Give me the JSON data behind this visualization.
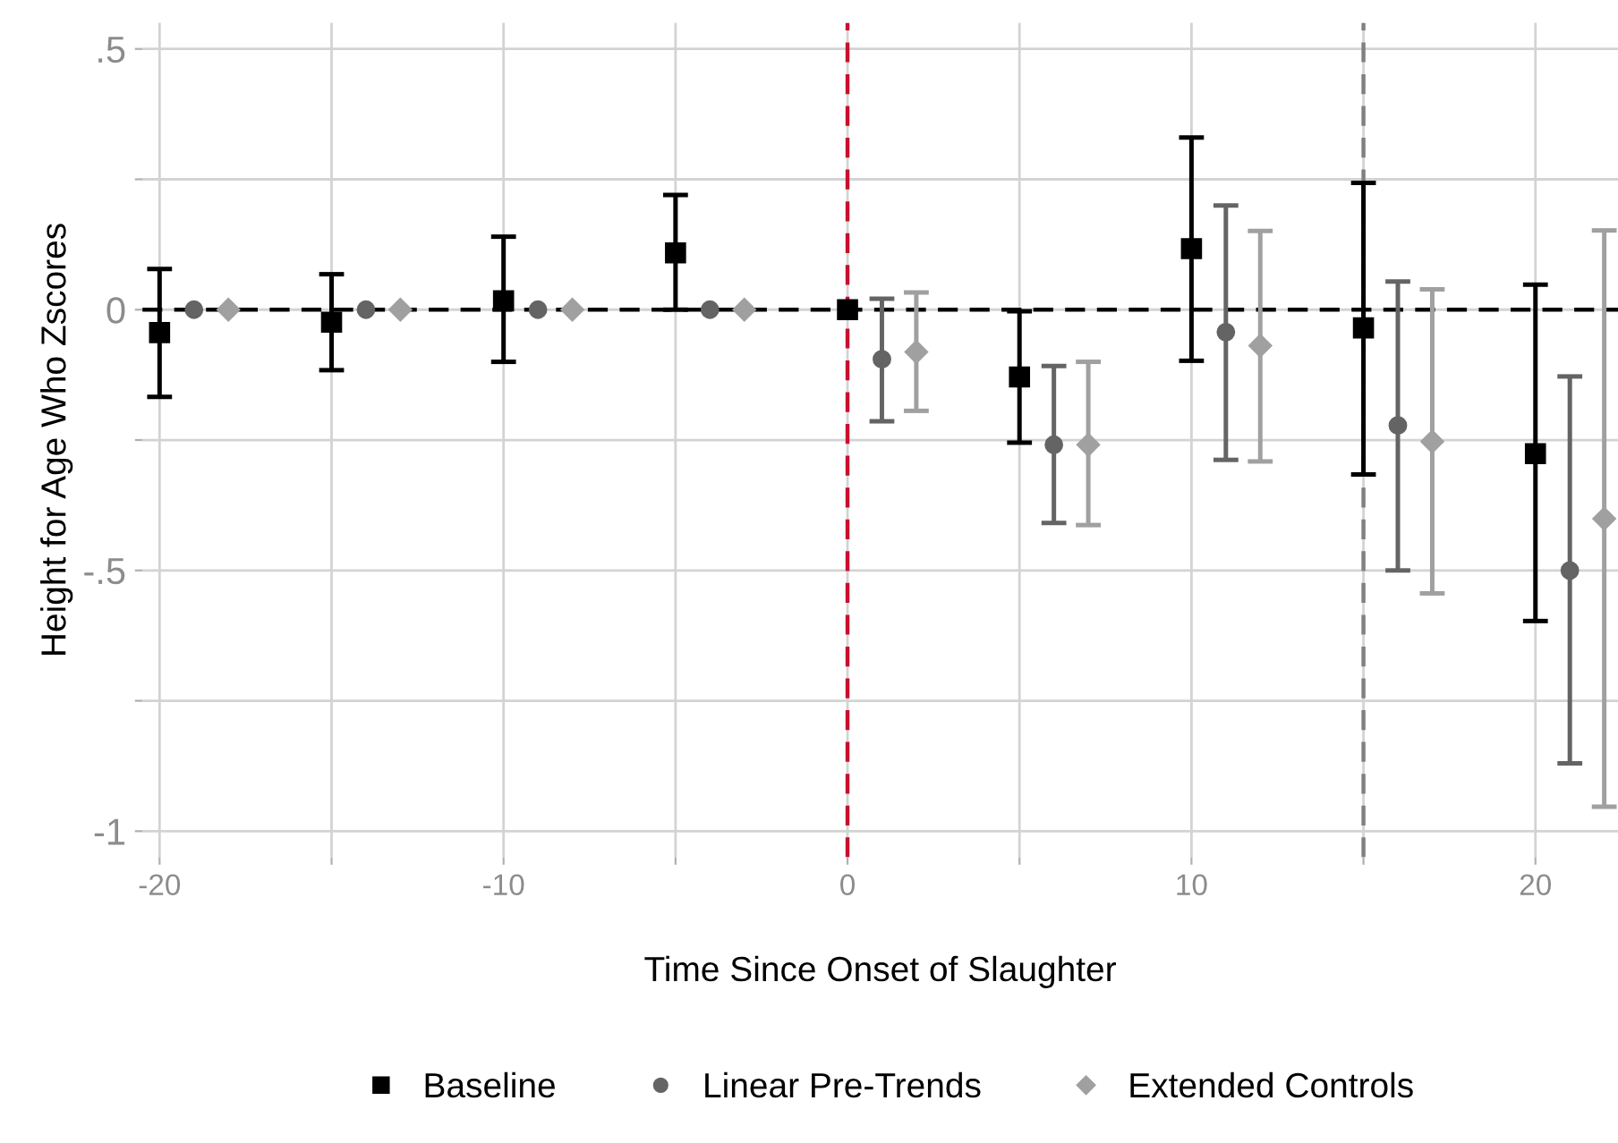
{
  "chart_data": {
    "type": "scatter",
    "xlabel": "Time Since Onset of Slaughter",
    "ylabel": "Height for Age Who Zscores",
    "xlim": [
      -20.5,
      22.4
    ],
    "ylim": [
      -1.05,
      0.55
    ],
    "xticks": [
      -20,
      {
        "value": -15,
        "label": null
      },
      -10,
      {
        "value": -5,
        "label": null
      },
      0,
      {
        "value": 5,
        "label": null
      },
      10,
      {
        "value": 15,
        "label": null
      },
      20
    ],
    "yticks": [
      {
        "value": -1,
        "label": "-1"
      },
      {
        "value": -0.75,
        "label": null
      },
      {
        "value": -0.5,
        "label": "-.5"
      },
      {
        "value": -0.25,
        "label": null
      },
      0,
      {
        "value": 0.25,
        "label": null
      },
      {
        "value": 0.5,
        "label": ".5"
      }
    ],
    "grid": true,
    "legend": "bottom",
    "ref_lines": [
      {
        "axis": "y",
        "value": 0,
        "color": "#000000",
        "line_style": "dashed"
      },
      {
        "axis": "x",
        "value": 0,
        "color": "#c8102e",
        "line_style": "dashed"
      },
      {
        "axis": "x",
        "value": 15,
        "color": "#808080",
        "line_style": "dashed"
      }
    ],
    "series": [
      {
        "name": "Baseline",
        "color": "#000000",
        "marker": "square",
        "x": [
          -20,
          -15,
          -10,
          -5,
          0,
          5,
          10,
          15,
          20
        ],
        "values": [
          -0.044,
          -0.024,
          0.017,
          0.109,
          0,
          -0.129,
          0.117,
          -0.035,
          -0.276
        ],
        "errors": [
          [
            -0.167,
            0.078
          ],
          [
            -0.116,
            0.068
          ],
          [
            -0.1,
            0.14
          ],
          [
            0,
            0.22
          ],
          null,
          [
            -0.255,
            -0.003
          ],
          [
            -0.098,
            0.33
          ],
          [
            -0.316,
            0.243
          ],
          [
            -0.597,
            0.048
          ]
        ]
      },
      {
        "name": "Linear Pre-Trends",
        "color": "#646464",
        "marker": "circle",
        "x": [
          -19,
          -14,
          -9,
          -4,
          1,
          6,
          11,
          16,
          21
        ],
        "values": [
          0,
          0,
          0,
          0,
          -0.095,
          -0.259,
          -0.043,
          -0.222,
          -0.5
        ],
        "errors": [
          null,
          null,
          null,
          null,
          [
            -0.214,
            0.021
          ],
          [
            -0.409,
            -0.108
          ],
          [
            -0.288,
            0.2
          ],
          [
            -0.5,
            0.054
          ],
          [
            -0.87,
            -0.128
          ]
        ]
      },
      {
        "name": "Extended Controls",
        "color": "#a0a0a0",
        "marker": "diamond",
        "x": [
          -18,
          -13,
          -8,
          -3,
          2,
          7,
          12,
          17,
          22
        ],
        "values": [
          0,
          0,
          0,
          0,
          -0.081,
          -0.259,
          -0.069,
          -0.253,
          -0.401
        ],
        "errors": [
          null,
          null,
          null,
          null,
          [
            -0.194,
            0.033
          ],
          [
            -0.413,
            -0.1
          ],
          [
            -0.291,
            0.151
          ],
          [
            -0.544,
            0.039
          ],
          [
            -0.953,
            0.152
          ]
        ]
      }
    ]
  }
}
